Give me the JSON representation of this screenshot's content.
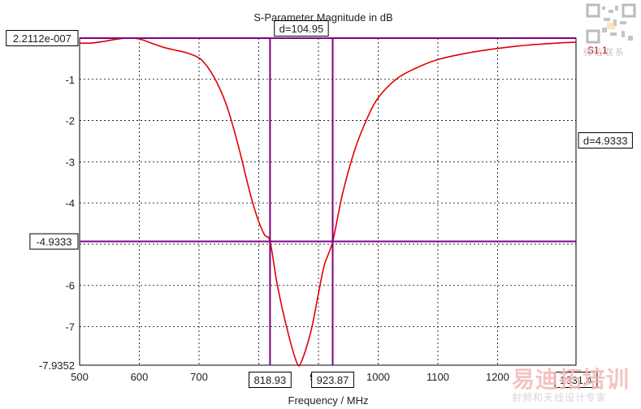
{
  "chart_data": {
    "type": "line",
    "title": "S-Parameter Magnitude in dB",
    "xlabel": "Frequency / MHz",
    "ylabel": "",
    "xlim": [
      500,
      1331.4
    ],
    "ylim": [
      -7.9352,
      2.2112e-07
    ],
    "x_ticks": [
      500,
      600,
      700,
      800,
      900,
      1000,
      1100,
      1200
    ],
    "y_ticks": [
      -1,
      -2,
      -3,
      -4,
      -5,
      -6,
      -7
    ],
    "y_tick_labels": [
      "-1",
      "-2",
      "-3",
      "-4",
      "-5",
      "-6",
      "-7"
    ],
    "x_tick_labels": [
      "500",
      "600",
      "700",
      "800",
      "900",
      "1000",
      "1100",
      "1200"
    ],
    "y_max_label": "2.2112e-007",
    "y_min_label": "-7.9352",
    "x_max_label": "1331.4",
    "grid": true,
    "series": [
      {
        "name": "S1,1",
        "color": "#e00000",
        "x": [
          500,
          520,
          540,
          560,
          580,
          600,
          620,
          640,
          660,
          680,
          700,
          710,
          720,
          730,
          740,
          750,
          760,
          770,
          780,
          790,
          800,
          810,
          818.93,
          830,
          840,
          850,
          860,
          866,
          870,
          880,
          890,
          900,
          910,
          923.87,
          940,
          960,
          980,
          1000,
          1030,
          1060,
          1100,
          1150,
          1200,
          1250,
          1300,
          1331.4
        ],
        "y": [
          -0.12,
          -0.12,
          -0.08,
          -0.03,
          0.0,
          -0.02,
          -0.12,
          -0.22,
          -0.29,
          -0.36,
          -0.48,
          -0.62,
          -0.82,
          -1.08,
          -1.4,
          -1.8,
          -2.3,
          -2.85,
          -3.45,
          -4.0,
          -4.45,
          -4.78,
          -4.9333,
          -5.9,
          -6.6,
          -7.2,
          -7.72,
          -7.9352,
          -7.9,
          -7.5,
          -6.95,
          -6.2,
          -5.5,
          -4.9333,
          -3.8,
          -2.75,
          -2.0,
          -1.45,
          -1.0,
          -0.75,
          -0.52,
          -0.36,
          -0.25,
          -0.17,
          -0.12,
          -0.1
        ]
      }
    ],
    "markers": {
      "hline_y": -4.9333,
      "vline_x1": 818.93,
      "vline_x2": 923.87,
      "hline_label": "-4.9333",
      "vline_label1": "818.93",
      "vline_label2": "923.87",
      "dx_label": "d=104.95",
      "dy_label": "d=4.9333",
      "line_color": "#800080",
      "top_line_y": 2.2112e-07
    },
    "legend_label": "S1,1",
    "legend_placement": "top-right"
  },
  "watermark": {
    "cn_top": "微信联系",
    "brand": "易迪拓培训",
    "tagline": "射频和天线设计专家"
  }
}
